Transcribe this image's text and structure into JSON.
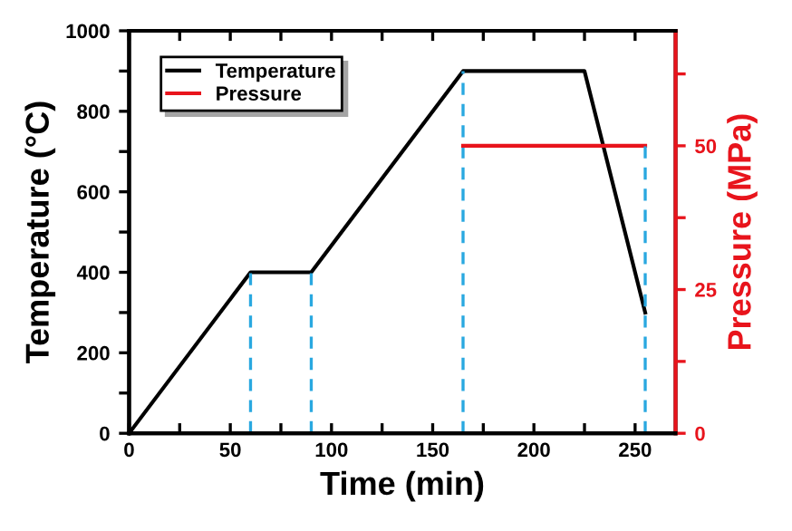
{
  "chart_data": {
    "type": "line",
    "xlabel": "Time (min)",
    "ylabel": "Temperature (°C)",
    "y2label": "Pressure (MPa)",
    "xlim": [
      0,
      270
    ],
    "xticks": [
      0,
      {
        "value": 25,
        "label": null
      },
      50,
      {
        "value": 75,
        "label": null
      },
      100,
      {
        "value": 125,
        "label": null
      },
      150,
      {
        "value": 175,
        "label": null
      },
      200,
      {
        "value": 225,
        "label": null
      },
      250
    ],
    "ylim": [
      0,
      1000
    ],
    "yticks": [
      0,
      {
        "value": 100,
        "label": null
      },
      200,
      {
        "value": 300,
        "label": null
      },
      400,
      {
        "value": 500,
        "label": null
      },
      600,
      {
        "value": 700,
        "label": null
      },
      800,
      {
        "value": 900,
        "label": null
      },
      1000
    ],
    "y2lim": [
      0,
      70
    ],
    "y2ticks": [
      0,
      {
        "value": 12.5,
        "label": null
      },
      25,
      {
        "value": 37.5,
        "label": null
      },
      50,
      {
        "value": 62.5,
        "label": null
      }
    ],
    "legend": "top left",
    "grid": false,
    "marker": "none",
    "series": [
      {
        "name": "Temperature",
        "color": "#000000",
        "x": [
          0,
          60,
          90,
          165,
          225,
          255
        ],
        "values": [
          0,
          400,
          400,
          900,
          900,
          300
        ]
      },
      {
        "name": "Pressure",
        "color": "#e8141c",
        "axis": "y2",
        "x": [
          165,
          255
        ],
        "values": [
          50,
          50
        ]
      },
      {
        "color": "#29a8e0",
        "line_style": "dashed",
        "x": [
          60,
          60
        ],
        "values": [
          0,
          400
        ]
      },
      {
        "color": "#29a8e0",
        "line_style": "dashed",
        "x": [
          90,
          90
        ],
        "values": [
          0,
          400
        ]
      },
      {
        "color": "#29a8e0",
        "line_style": "dashed",
        "x": [
          165,
          165
        ],
        "values": [
          0,
          900
        ]
      },
      {
        "color": "#29a8e0",
        "line_style": "dashed",
        "axis": "y2",
        "x": [
          255,
          255
        ],
        "values": [
          0,
          50
        ]
      }
    ]
  }
}
